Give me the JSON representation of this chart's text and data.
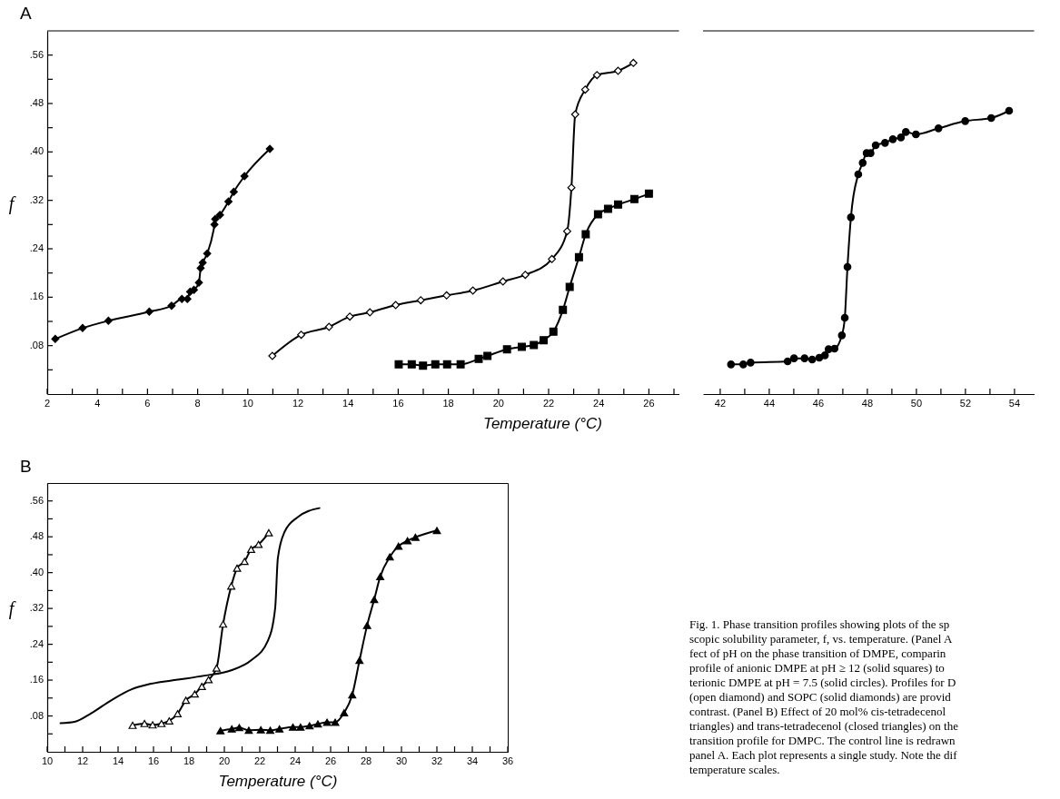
{
  "chart_data": [
    {
      "type": "line",
      "title": "A",
      "xlabel": "Temperature (°C)",
      "ylabel": "f",
      "xlim": [
        2,
        27.2
      ],
      "xticks": [
        2,
        {
          "value": 3,
          "label": null
        },
        4,
        {
          "value": 5,
          "label": null
        },
        6,
        {
          "value": 7,
          "label": null
        },
        8,
        {
          "value": 9,
          "label": null
        },
        10,
        {
          "value": 11,
          "label": null
        },
        12,
        {
          "value": 13,
          "label": null
        },
        14,
        {
          "value": 15,
          "label": null
        },
        16,
        {
          "value": 17,
          "label": null
        },
        18,
        {
          "value": 19,
          "label": null
        },
        20,
        {
          "value": 21,
          "label": null
        },
        22,
        {
          "value": 23,
          "label": null
        },
        24,
        {
          "value": 25,
          "label": null
        },
        26,
        {
          "value": 27,
          "label": null
        }
      ],
      "ylim": [
        0,
        0.6
      ],
      "yticks": [
        {
          "value": 0.04,
          "label": null
        },
        {
          "value": 0.08,
          "label": ".08"
        },
        {
          "value": 0.12,
          "label": null
        },
        {
          "value": 0.16,
          "label": ".16"
        },
        {
          "value": 0.2,
          "label": null
        },
        {
          "value": 0.24,
          "label": ".24"
        },
        {
          "value": 0.28,
          "label": null
        },
        {
          "value": 0.32,
          "label": ".32"
        },
        {
          "value": 0.36,
          "label": null
        },
        {
          "value": 0.4,
          "label": ".40"
        },
        {
          "value": 0.44,
          "label": null
        },
        {
          "value": 0.48,
          "label": ".48"
        },
        {
          "value": 0.52,
          "label": null
        },
        {
          "value": 0.56,
          "label": ".56"
        }
      ],
      "line_style": "solid",
      "series": [
        {
          "type": "line",
          "marker": "diamond",
          "color": "#000000",
          "x": [
            2.32,
            3.41,
            4.44,
            6.07,
            6.96,
            7.37,
            7.59,
            7.7,
            7.85,
            8.05,
            8.12,
            8.2,
            8.38,
            8.67,
            8.7,
            8.89,
            9.23,
            9.44,
            9.87,
            10.88
          ],
          "values": [
            0.091,
            0.109,
            0.121,
            0.136,
            0.146,
            0.157,
            0.157,
            0.169,
            0.172,
            0.184,
            0.208,
            0.217,
            0.232,
            0.28,
            0.289,
            0.296,
            0.318,
            0.334,
            0.36,
            0.405
          ]
        },
        {
          "type": "line",
          "marker": "diamond",
          "color": "#ffffff",
          "x": [
            10.98,
            12.13,
            13.24,
            14.07,
            14.87,
            15.9,
            16.9,
            17.93,
            18.98,
            20.18,
            21.07,
            22.13,
            22.74,
            22.91,
            23.06,
            23.46,
            23.93,
            24.77,
            25.38
          ],
          "values": [
            0.063,
            0.098,
            0.111,
            0.128,
            0.135,
            0.147,
            0.155,
            0.163,
            0.171,
            0.186,
            0.197,
            0.223,
            0.269,
            0.341,
            0.462,
            0.503,
            0.527,
            0.534,
            0.547
          ]
        },
        {
          "type": "line",
          "marker": "square",
          "color": "#000000",
          "x": [
            16.02,
            16.54,
            16.99,
            17.48,
            17.95,
            18.49,
            19.21,
            19.56,
            20.34,
            20.93,
            21.41,
            21.8,
            22.19,
            22.57,
            22.84,
            23.21,
            23.48,
            23.97,
            24.37,
            24.77,
            25.42,
            26.0
          ],
          "values": [
            0.049,
            0.049,
            0.047,
            0.049,
            0.049,
            0.049,
            0.058,
            0.063,
            0.074,
            0.078,
            0.081,
            0.089,
            0.103,
            0.139,
            0.177,
            0.226,
            0.264,
            0.297,
            0.306,
            0.313,
            0.322,
            0.331
          ]
        }
      ]
    },
    {
      "type": "line",
      "xlim": [
        41.3,
        54.8
      ],
      "xticks": [
        42,
        {
          "value": 43,
          "label": null
        },
        44,
        {
          "value": 45,
          "label": null
        },
        46,
        {
          "value": 47,
          "label": null
        },
        48,
        {
          "value": 49,
          "label": null
        },
        50,
        {
          "value": 51,
          "label": null
        },
        52,
        {
          "value": 53,
          "label": null
        },
        54
      ],
      "ylim": [
        0,
        0.6
      ],
      "tick_labels": "x",
      "line_style": "solid",
      "series": [
        {
          "type": "line",
          "marker": "circle",
          "color": "#000000",
          "x": [
            42.44,
            42.94,
            43.24,
            44.75,
            45.01,
            45.44,
            45.75,
            46.04,
            46.27,
            46.42,
            46.66,
            46.96,
            47.08,
            47.19,
            47.33,
            47.63,
            47.81,
            47.97,
            48.13,
            48.34,
            48.72,
            49.04,
            49.37,
            49.57,
            49.98,
            50.9,
            51.99,
            53.05,
            53.78
          ],
          "values": [
            0.049,
            0.049,
            0.052,
            0.054,
            0.059,
            0.059,
            0.057,
            0.06,
            0.064,
            0.074,
            0.075,
            0.097,
            0.126,
            0.21,
            0.292,
            0.363,
            0.382,
            0.398,
            0.398,
            0.411,
            0.415,
            0.421,
            0.424,
            0.433,
            0.429,
            0.439,
            0.451,
            0.456,
            0.468
          ]
        }
      ]
    },
    {
      "type": "line",
      "title": "B",
      "xlabel": "Temperature (°C)",
      "ylabel": "f",
      "xlim": [
        10,
        36
      ],
      "xticks": [
        10,
        {
          "value": 11,
          "label": null
        },
        12,
        {
          "value": 13,
          "label": null
        },
        14,
        {
          "value": 15,
          "label": null
        },
        16,
        {
          "value": 17,
          "label": null
        },
        18,
        {
          "value": 19,
          "label": null
        },
        20,
        {
          "value": 21,
          "label": null
        },
        22,
        {
          "value": 23,
          "label": null
        },
        24,
        {
          "value": 25,
          "label": null
        },
        26,
        {
          "value": 27,
          "label": null
        },
        28,
        {
          "value": 29,
          "label": null
        },
        30,
        {
          "value": 31,
          "label": null
        },
        32,
        {
          "value": 33,
          "label": null
        },
        34,
        {
          "value": 35,
          "label": null
        },
        36
      ],
      "ylim": [
        0,
        0.6
      ],
      "yticks": [
        {
          "value": 0.04,
          "label": null
        },
        {
          "value": 0.08,
          "label": ".08"
        },
        {
          "value": 0.12,
          "label": null
        },
        {
          "value": 0.16,
          "label": ".16"
        },
        {
          "value": 0.2,
          "label": null
        },
        {
          "value": 0.24,
          "label": ".24"
        },
        {
          "value": 0.28,
          "label": null
        },
        {
          "value": 0.32,
          "label": ".32"
        },
        {
          "value": 0.36,
          "label": null
        },
        {
          "value": 0.4,
          "label": ".40"
        },
        {
          "value": 0.44,
          "label": null
        },
        {
          "value": 0.48,
          "label": ".48"
        },
        {
          "value": 0.52,
          "label": null
        },
        {
          "value": 0.56,
          "label": ".56"
        }
      ],
      "line_style": "solid",
      "series": [
        {
          "type": "line",
          "marker": "none",
          "color": "#000000",
          "x": [
            10.75,
            11.54,
            12.48,
            13.61,
            14.74,
            15.87,
            17.38,
            18.88,
            20.39,
            21.51,
            22.46,
            22.87,
            23.02,
            23.4,
            24.15,
            25.37
          ],
          "values": [
            0.064,
            0.067,
            0.086,
            0.115,
            0.139,
            0.152,
            0.161,
            0.17,
            0.182,
            0.204,
            0.248,
            0.321,
            0.432,
            0.491,
            0.524,
            0.544
          ]
        },
        {
          "type": "line",
          "marker": "triangle",
          "color": "#ffffff",
          "x": [
            14.82,
            15.49,
            15.95,
            16.45,
            16.89,
            17.36,
            17.83,
            18.33,
            18.73,
            19.11,
            19.56,
            19.93,
            20.39,
            20.72,
            21.14,
            21.51,
            21.93,
            22.51
          ],
          "values": [
            0.059,
            0.063,
            0.06,
            0.063,
            0.069,
            0.085,
            0.115,
            0.129,
            0.146,
            0.161,
            0.187,
            0.285,
            0.37,
            0.41,
            0.425,
            0.452,
            0.463,
            0.489
          ]
        },
        {
          "type": "line",
          "marker": "triangle",
          "color": "#000000",
          "x": [
            19.78,
            20.42,
            20.84,
            21.38,
            22.06,
            22.59,
            23.11,
            23.87,
            24.3,
            24.81,
            25.28,
            25.8,
            26.26,
            26.76,
            27.22,
            27.63,
            28.06,
            28.46,
            28.8,
            29.34,
            29.83,
            30.34,
            30.79,
            32.0
          ],
          "values": [
            0.047,
            0.051,
            0.054,
            0.048,
            0.049,
            0.048,
            0.051,
            0.055,
            0.055,
            0.058,
            0.062,
            0.066,
            0.066,
            0.087,
            0.127,
            0.204,
            0.282,
            0.34,
            0.391,
            0.435,
            0.459,
            0.471,
            0.479,
            0.494
          ]
        }
      ],
      "annotations": [
        "Fig. 1. Phase transition profiles showing plots of the sp",
        "scopic solubility parameter, f, vs. temperature. (Panel A",
        "fect of pH on the phase transition of DMPE, comparin",
        "profile of anionic DMPE at pH ≥ 12 (solid squares) to",
        "terionic DMPE at pH = 7.5 (solid circles). Profiles for D",
        "(open diamond) and SOPC (solid diamonds) are provid",
        "contrast. (Panel B) Effect of 20 mol% cis-tetradecenol",
        "triangles) and trans-tetradecenol (closed triangles) on the",
        "transition profile for DMPC. The control line is redrawn",
        "panel A. Each plot represents a single study. Note the dif",
        "temperature scales."
      ]
    }
  ]
}
